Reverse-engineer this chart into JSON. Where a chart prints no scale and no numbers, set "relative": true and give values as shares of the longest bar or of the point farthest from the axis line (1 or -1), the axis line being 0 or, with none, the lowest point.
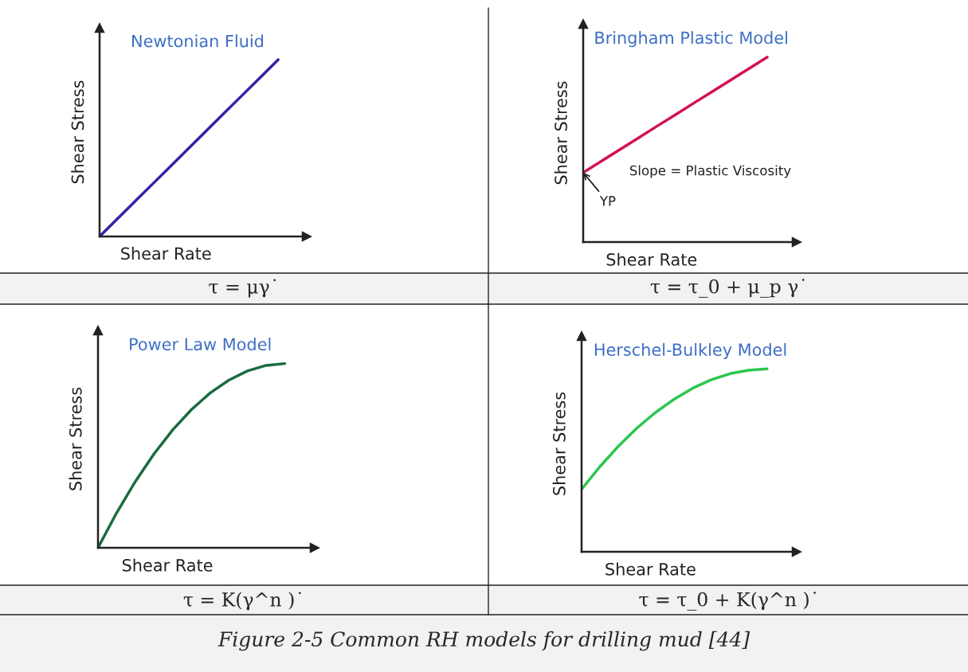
{
  "chart_data": [
    {
      "type": "line",
      "relative": true,
      "title": "Newtonian Fluid",
      "xlabel": "Shear Rate",
      "ylabel": "Shear Stress",
      "categories": [
        null,
        null,
        null,
        null,
        null,
        null,
        null,
        null,
        null,
        null,
        null
      ],
      "series": [
        {
          "color": "#3a1fa6",
          "values": [
            0,
            0.1,
            0.2,
            0.3,
            0.4,
            0.5,
            0.6,
            0.7,
            0.8,
            0.9,
            1
          ]
        }
      ],
      "annotations": [
        "τ = μγ˙"
      ]
    },
    {
      "type": "line",
      "relative": true,
      "title": "Bringham Plastic Model",
      "xlabel": "Shear Rate",
      "ylabel": "Shear Stress",
      "categories": [
        null,
        null,
        null,
        null,
        null,
        null,
        null,
        null,
        null,
        null,
        null
      ],
      "series": [
        {
          "color": "#d4124e",
          "values": [
            0.376,
            0.438,
            0.501,
            0.563,
            0.626,
            0.688,
            0.751,
            0.813,
            0.875,
            0.938,
            1
          ]
        }
      ],
      "annotations": [
        "τ = τ_0 + μ_p γ˙",
        "Slope = Plastic Viscosity",
        "YP"
      ]
    },
    {
      "type": "line",
      "relative": true,
      "title": "Power Law Model",
      "xlabel": "Shear Rate",
      "ylabel": "Shear Stress",
      "categories": [
        null,
        null,
        null,
        null,
        null,
        null,
        null,
        null,
        null,
        null,
        null
      ],
      "series": [
        {
          "color": "#1a6b40",
          "values": [
            0,
            0.19,
            0.36,
            0.51,
            0.64,
            0.75,
            0.84,
            0.91,
            0.96,
            0.99,
            1
          ]
        }
      ],
      "annotations": [
        "τ = K(γ^n )˙"
      ]
    },
    {
      "type": "line",
      "relative": true,
      "title": "Herschel-Bulkley Model",
      "xlabel": "Shear Rate",
      "ylabel": "Shear Stress",
      "categories": [
        null,
        null,
        null,
        null,
        null,
        null,
        null,
        null,
        null,
        null,
        null
      ],
      "series": [
        {
          "color": "#2cc64e",
          "values": [
            0.342,
            0.467,
            0.579,
            0.678,
            0.763,
            0.835,
            0.895,
            0.941,
            0.974,
            0.993,
            1
          ]
        }
      ],
      "annotations": [
        "τ = τ_0 + K(γ^n )˙",
        "Figure 2-5 Common RH models for drilling mud [44]"
      ]
    }
  ]
}
